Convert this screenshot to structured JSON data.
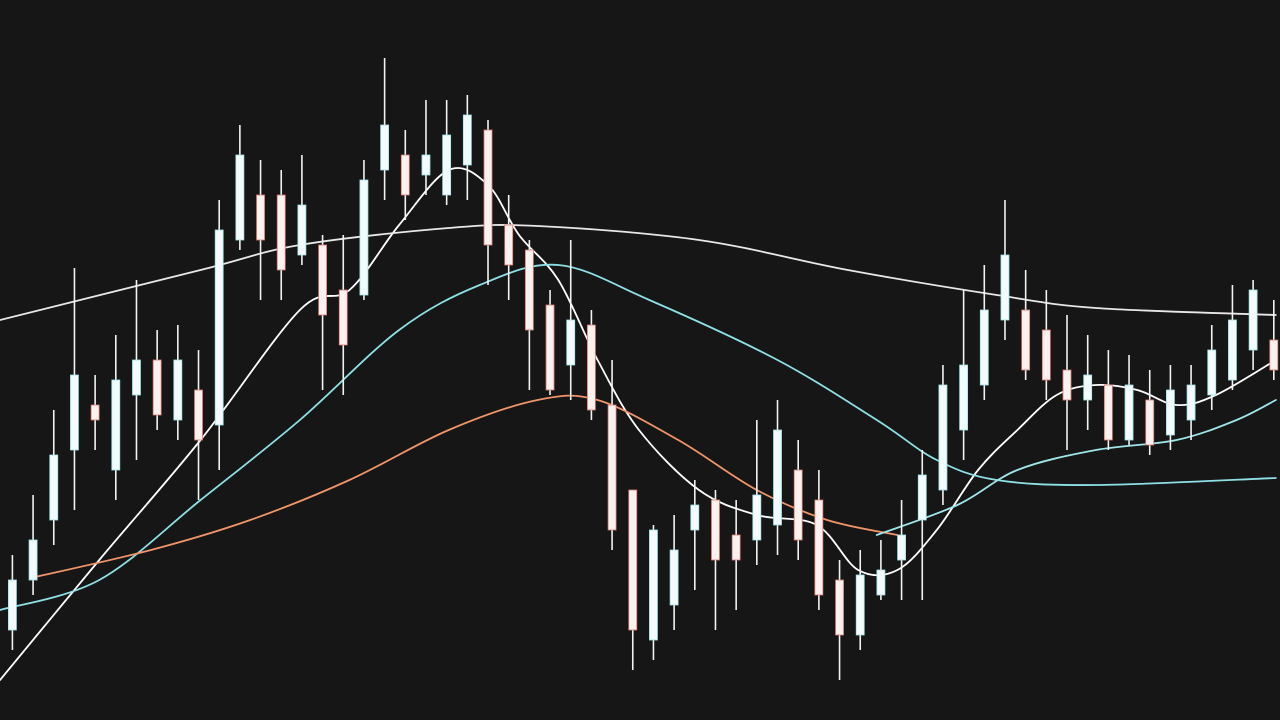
{
  "chart_data": {
    "type": "candlestick",
    "title": "",
    "xlabel": "",
    "ylabel": "",
    "axes_visible": false,
    "grid": false,
    "xlim": [
      -0.6,
      61.3
    ],
    "ylim": [
      0,
      72
    ],
    "background_color": "#161616",
    "colors": {
      "bull_body": "#f4fbfc",
      "bull_edge": "#9fe3ea",
      "bear_body": "#fbf1f1",
      "bear_edge": "#e07a6e",
      "wick": "#f2f2f2"
    },
    "candles_ohlc": [
      [
        9.0,
        16.5,
        7.0,
        14.0
      ],
      [
        14.0,
        22.5,
        12.5,
        18.0
      ],
      [
        20.0,
        31.0,
        17.5,
        26.5
      ],
      [
        27.0,
        45.2,
        21.0,
        34.5
      ],
      [
        31.5,
        34.5,
        27.0,
        30.0
      ],
      [
        25.0,
        38.5,
        22.0,
        34.0
      ],
      [
        32.5,
        44.0,
        26.0,
        36.0
      ],
      [
        36.0,
        39.0,
        29.0,
        30.5
      ],
      [
        30.0,
        39.5,
        28.0,
        36.0
      ],
      [
        33.0,
        37.0,
        22.0,
        28.0
      ],
      [
        29.5,
        52.0,
        25.0,
        49.0
      ],
      [
        48.0,
        59.5,
        47.0,
        56.5
      ],
      [
        52.5,
        56.0,
        42.0,
        48.0
      ],
      [
        52.5,
        55.0,
        42.0,
        45.0
      ],
      [
        46.5,
        56.5,
        45.5,
        51.5
      ],
      [
        47.5,
        48.5,
        33.0,
        40.5
      ],
      [
        43.0,
        48.5,
        32.5,
        37.5
      ],
      [
        42.5,
        56.0,
        42.0,
        54.0
      ],
      [
        55.0,
        66.2,
        52.0,
        59.5
      ],
      [
        56.5,
        59.0,
        50.0,
        52.5
      ],
      [
        54.5,
        62.0,
        52.5,
        56.5
      ],
      [
        52.5,
        62.0,
        51.5,
        58.5
      ],
      [
        55.5,
        62.5,
        52.0,
        60.5
      ],
      [
        59.0,
        60.0,
        43.5,
        47.5
      ],
      [
        49.5,
        52.5,
        42.0,
        45.5
      ],
      [
        47.0,
        48.0,
        33.0,
        39.0
      ],
      [
        41.5,
        43.0,
        32.5,
        33.0
      ],
      [
        35.5,
        48.0,
        32.0,
        40.0
      ],
      [
        39.5,
        41.0,
        30.0,
        31.0
      ],
      [
        31.5,
        36.0,
        17.0,
        19.0
      ],
      [
        23.0,
        23.0,
        5.0,
        9.0
      ],
      [
        8.0,
        19.5,
        6.0,
        19.0
      ],
      [
        11.5,
        20.5,
        9.0,
        17.0
      ],
      [
        19.0,
        24.0,
        13.0,
        21.5
      ],
      [
        22.0,
        23.0,
        9.0,
        16.0
      ],
      [
        18.5,
        22.0,
        11.0,
        16.0
      ],
      [
        18.0,
        30.0,
        15.5,
        22.5
      ],
      [
        19.5,
        32.0,
        16.5,
        29.0
      ],
      [
        25.0,
        28.0,
        16.0,
        18.0
      ],
      [
        22.0,
        25.0,
        11.0,
        12.5
      ],
      [
        14.0,
        16.0,
        4.0,
        8.5
      ],
      [
        8.5,
        17.0,
        7.0,
        14.5
      ],
      [
        12.5,
        18.0,
        12.0,
        15.0
      ],
      [
        16.0,
        22.0,
        12.0,
        18.5
      ],
      [
        20.0,
        27.0,
        12.0,
        24.5
      ],
      [
        23.0,
        35.5,
        21.5,
        33.5
      ],
      [
        29.0,
        43.0,
        26.0,
        35.5
      ],
      [
        33.5,
        45.5,
        32.0,
        41.0
      ],
      [
        40.0,
        52.0,
        38.0,
        46.5
      ],
      [
        41.0,
        45.0,
        34.0,
        35.0
      ],
      [
        39.0,
        43.0,
        32.0,
        34.0
      ],
      [
        35.0,
        40.5,
        27.0,
        32.0
      ],
      [
        32.0,
        38.5,
        29.0,
        34.5
      ],
      [
        33.5,
        37.0,
        27.0,
        28.0
      ],
      [
        28.0,
        36.5,
        27.5,
        33.5
      ],
      [
        32.0,
        35.0,
        26.5,
        27.5
      ],
      [
        28.5,
        35.5,
        27.0,
        33.0
      ],
      [
        30.0,
        35.5,
        28.0,
        33.5
      ],
      [
        32.5,
        39.5,
        31.0,
        37.0
      ],
      [
        34.0,
        43.5,
        33.0,
        40.0
      ],
      [
        37.0,
        44.0,
        35.0,
        43.0
      ],
      [
        38.0,
        42.0,
        34.0,
        35.0
      ]
    ],
    "moving_averages": [
      {
        "color": "#ffffff",
        "points": [
          [
            -0.6,
            4.0
          ],
          [
            4.2,
            16.0
          ],
          [
            9.1,
            28.0
          ],
          [
            13.9,
            41.0
          ],
          [
            16.3,
            43.0
          ],
          [
            18.7,
            49.5
          ],
          [
            21.1,
            55.0
          ],
          [
            23.0,
            53.5
          ],
          [
            24.5,
            48.5
          ],
          [
            26.4,
            44.0
          ],
          [
            28.3,
            36.0
          ],
          [
            30.3,
            29.0
          ],
          [
            33.2,
            23.0
          ],
          [
            36.0,
            20.5
          ],
          [
            38.9,
            19.5
          ],
          [
            40.9,
            15.0
          ],
          [
            42.8,
            15.0
          ],
          [
            44.7,
            19.0
          ],
          [
            46.7,
            25.0
          ],
          [
            48.6,
            29.0
          ],
          [
            50.5,
            32.5
          ],
          [
            52.4,
            33.5
          ],
          [
            54.4,
            33.0
          ],
          [
            56.3,
            31.5
          ],
          [
            58.2,
            32.5
          ],
          [
            61.1,
            36.0
          ]
        ]
      },
      {
        "color": "#e8e8e8",
        "points": [
          [
            -0.6,
            40.0
          ],
          [
            9.1,
            45.0
          ],
          [
            13.9,
            47.5
          ],
          [
            21.1,
            49.2
          ],
          [
            25.4,
            49.4
          ],
          [
            33.2,
            48.0
          ],
          [
            40.4,
            45.0
          ],
          [
            47.6,
            42.5
          ],
          [
            52.4,
            41.2
          ],
          [
            61.1,
            40.5
          ]
        ]
      },
      {
        "color": "#8fe0e6",
        "points": [
          [
            -0.6,
            11.0
          ],
          [
            4.2,
            14.0
          ],
          [
            9.1,
            22.0
          ],
          [
            13.9,
            30.0
          ],
          [
            18.7,
            39.0
          ],
          [
            22.6,
            43.5
          ],
          [
            26.4,
            45.5
          ],
          [
            30.8,
            42.0
          ],
          [
            37.0,
            36.0
          ],
          [
            41.8,
            30.0
          ],
          [
            44.7,
            26.0
          ],
          [
            47.6,
            24.0
          ],
          [
            52.4,
            23.5
          ],
          [
            61.1,
            24.2
          ]
        ]
      },
      {
        "color": "#f0956a",
        "points": [
          [
            0.9,
            14.2
          ],
          [
            6.7,
            17.0
          ],
          [
            11.5,
            20.0
          ],
          [
            16.3,
            24.0
          ],
          [
            21.1,
            29.0
          ],
          [
            25.4,
            32.0
          ],
          [
            28.3,
            32.0
          ],
          [
            32.2,
            28.0
          ],
          [
            36.0,
            23.0
          ],
          [
            39.4,
            20.0
          ],
          [
            42.8,
            18.5
          ]
        ]
      },
      {
        "color": "#9fe6ea",
        "points": [
          [
            41.8,
            18.5
          ],
          [
            45.7,
            21.5
          ],
          [
            48.6,
            25.0
          ],
          [
            52.4,
            27.0
          ],
          [
            56.3,
            28.0
          ],
          [
            59.2,
            30.0
          ],
          [
            61.1,
            32.0
          ]
        ]
      }
    ]
  }
}
